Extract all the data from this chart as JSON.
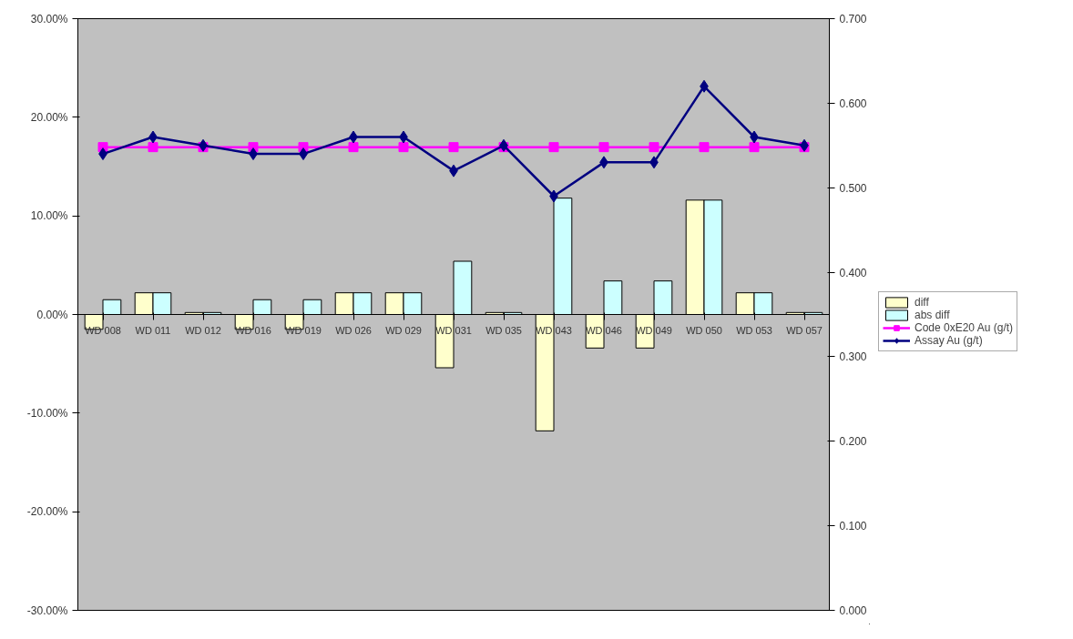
{
  "chart_data": {
    "type": "bar",
    "categories": [
      "WD 008",
      "WD 011",
      "WD 012",
      "WD 016",
      "WD 019",
      "WD 026",
      "WD 029",
      "WD 031",
      "WD 035",
      "WD 043",
      "WD 046",
      "WD 049",
      "WD 050",
      "WD 053",
      "WD 057"
    ],
    "series": [
      {
        "name": "diff",
        "color": "#ffffcc",
        "values": [
          -1.5,
          2.2,
          0.2,
          -1.5,
          -1.5,
          2.2,
          2.2,
          -5.4,
          0.2,
          -11.8,
          -3.4,
          -3.4,
          11.6,
          2.2,
          0.2
        ]
      },
      {
        "name": "abs diff",
        "color": "#ccffff",
        "values": [
          1.5,
          2.2,
          0.2,
          1.5,
          1.5,
          2.2,
          2.2,
          5.4,
          0.2,
          11.8,
          3.4,
          3.4,
          11.6,
          2.2,
          0.2
        ]
      },
      {
        "name": "Code 0xE20 Au (g/t)",
        "type": "line",
        "axis": "y2",
        "marker": "square",
        "color": "#ff00ff",
        "values": [
          0.548,
          0.548,
          0.548,
          0.548,
          0.548,
          0.548,
          0.548,
          0.548,
          0.548,
          0.548,
          0.548,
          0.548,
          0.548,
          0.548,
          0.548
        ]
      },
      {
        "name": "Assay Au (g/t)",
        "type": "line",
        "axis": "y2",
        "marker": "diamond",
        "color": "#000080",
        "values": [
          0.54,
          0.56,
          0.55,
          0.54,
          0.54,
          0.56,
          0.56,
          0.52,
          0.55,
          0.49,
          0.53,
          0.53,
          0.62,
          0.56,
          0.55
        ]
      }
    ],
    "ylim": [
      -30,
      30
    ],
    "yticks": [
      {
        "value": -30,
        "label": "-30.00%"
      },
      {
        "value": -20,
        "label": "-20.00%"
      },
      {
        "value": -10,
        "label": "-10.00%"
      },
      {
        "value": 0,
        "label": "0.00%"
      },
      {
        "value": 10,
        "label": "10.00%"
      },
      {
        "value": 20,
        "label": "20.00%"
      },
      {
        "value": 30,
        "label": "30.00%"
      }
    ],
    "y2lim": [
      0,
      0.7
    ],
    "y2ticks": [
      {
        "value": 0,
        "label": "0.000"
      },
      {
        "value": 0.1,
        "label": "0.100"
      },
      {
        "value": 0.2,
        "label": "0.200"
      },
      {
        "value": 0.3,
        "label": "0.300"
      },
      {
        "value": 0.4,
        "label": "0.400"
      },
      {
        "value": 0.5,
        "label": "0.500"
      },
      {
        "value": 0.6,
        "label": "0.600"
      },
      {
        "value": 0.7,
        "label": "0.700"
      }
    ],
    "grid": false,
    "legend": "right"
  }
}
